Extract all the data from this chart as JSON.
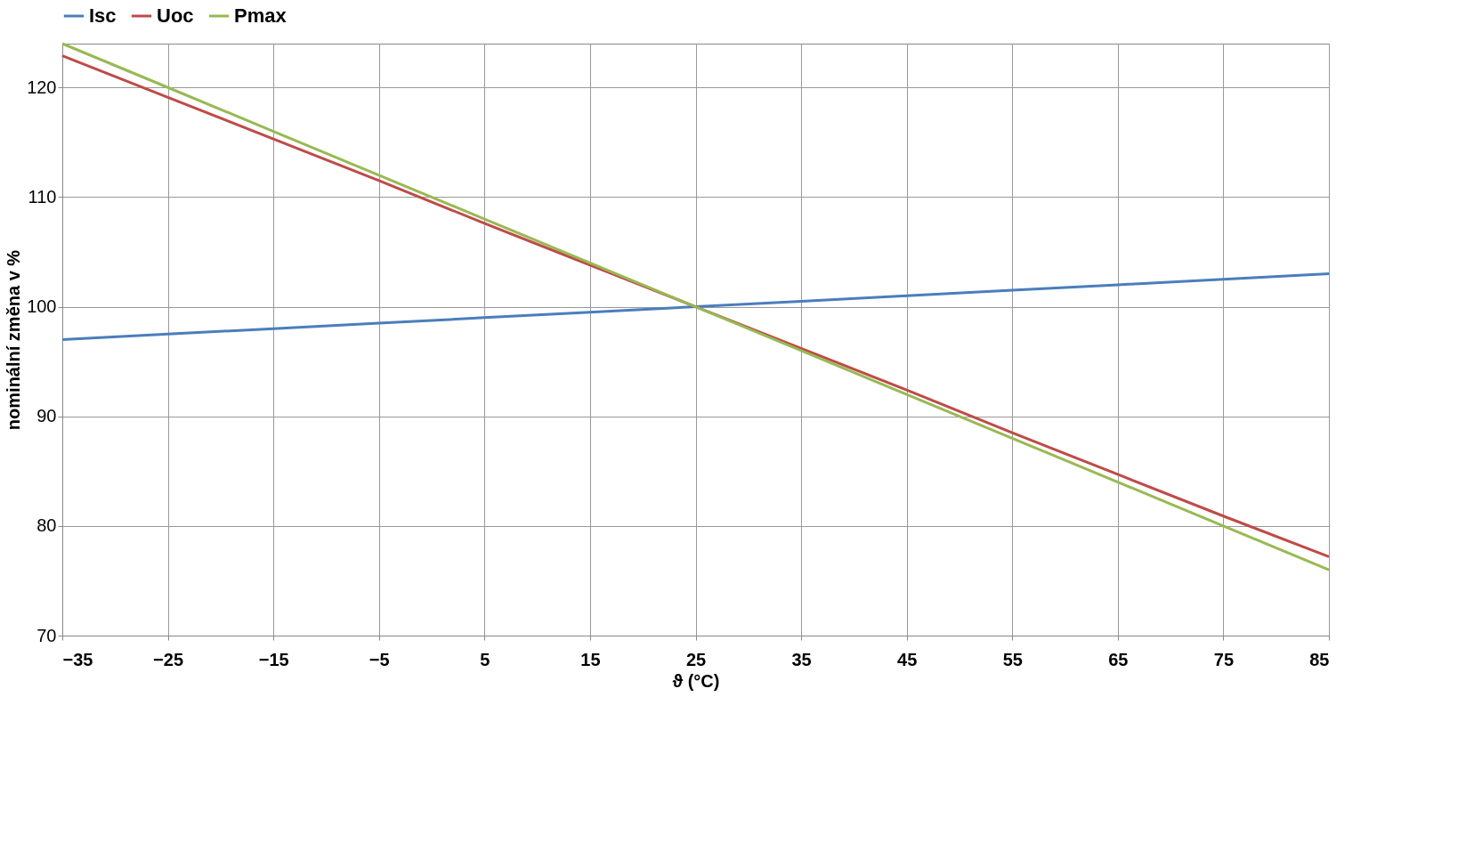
{
  "chart_data": {
    "type": "line",
    "xlabel": "ϑ (°C)",
    "ylabel": "nominální změna v %",
    "x": [
      -35,
      -25,
      -15,
      -5,
      5,
      15,
      25,
      35,
      45,
      55,
      65,
      75,
      85
    ],
    "series": [
      {
        "name": "Isc",
        "color": "#4a7ebb",
        "values": [
          97.0,
          97.5,
          98.0,
          98.5,
          99.0,
          99.5,
          100.0,
          100.5,
          101.0,
          101.5,
          102.0,
          102.5,
          103.0
        ]
      },
      {
        "name": "Uoc",
        "color": "#be4b48",
        "values": [
          122.9,
          119.1,
          115.3,
          111.5,
          107.6,
          103.8,
          100.0,
          96.2,
          92.4,
          88.5,
          84.7,
          80.9,
          77.2
        ]
      },
      {
        "name": "Pmax",
        "color": "#98b954",
        "values": [
          124.0,
          120.0,
          116.0,
          112.0,
          108.0,
          104.0,
          100.0,
          96.0,
          92.0,
          88.0,
          84.0,
          80.0,
          76.0
        ]
      }
    ],
    "xlim": [
      -35,
      85
    ],
    "xticks": [
      -35,
      -25,
      -15,
      -5,
      5,
      15,
      25,
      35,
      45,
      55,
      65,
      75,
      85
    ],
    "ylim": [
      70,
      124
    ],
    "yticks": [
      70,
      80,
      90,
      100,
      110,
      120
    ],
    "grid": true,
    "legend": "top",
    "marker": "none",
    "line_style": "solid"
  }
}
